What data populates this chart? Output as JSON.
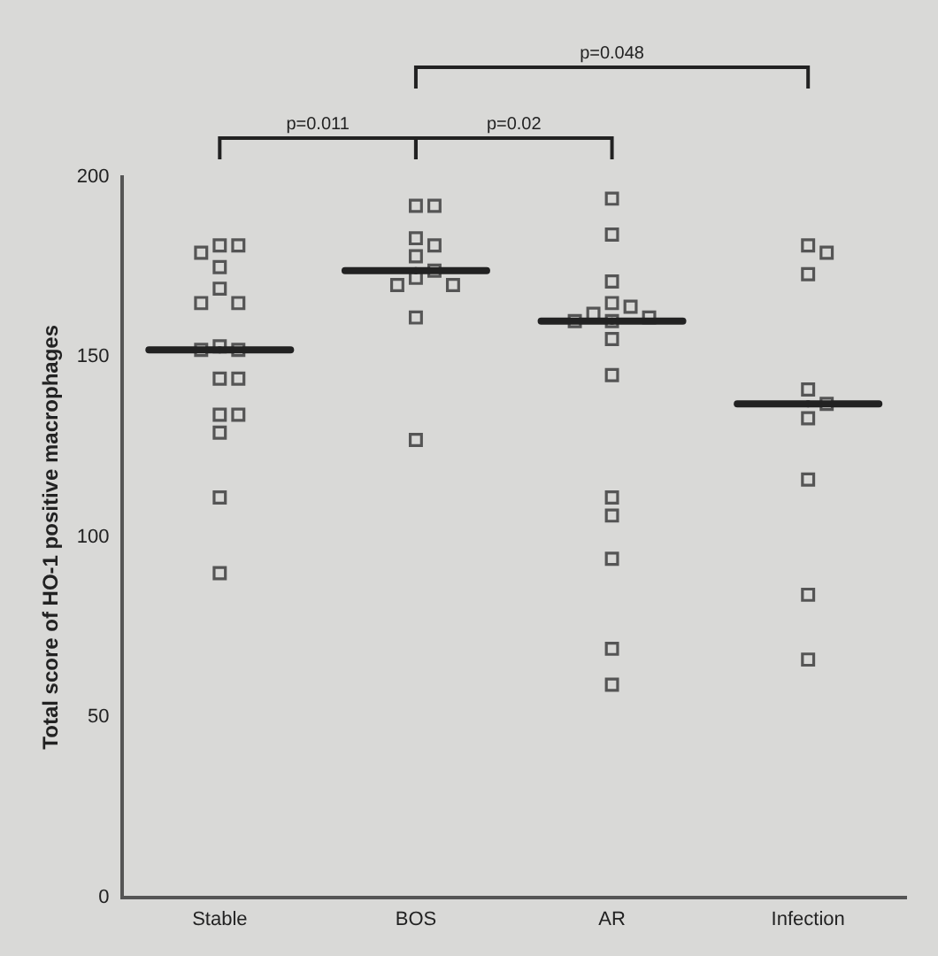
{
  "chart_data": {
    "type": "scatter",
    "ylabel": "Total score of HO-1 positive macrophages",
    "categories": [
      "Stable",
      "BOS",
      "AR",
      "Infection"
    ],
    "series": [
      {
        "marker": "square",
        "color": "#555555",
        "x": [
          "Stable",
          "Stable",
          "Stable",
          "Stable",
          "Stable",
          "Stable",
          "Stable",
          "Stable",
          "Stable",
          "Stable",
          "Stable",
          "Stable",
          "Stable",
          "Stable",
          "Stable",
          "Stable",
          "Stable",
          "BOS",
          "BOS",
          "BOS",
          "BOS",
          "BOS",
          "BOS",
          "BOS",
          "BOS",
          "BOS",
          "BOS",
          "BOS",
          "AR",
          "AR",
          "AR",
          "AR",
          "AR",
          "AR",
          "AR",
          "AR",
          "AR",
          "AR",
          "AR",
          "AR",
          "AR",
          "AR",
          "AR",
          "AR",
          "Infection",
          "Infection",
          "Infection",
          "Infection",
          "Infection",
          "Infection",
          "Infection",
          "Infection",
          "Infection"
        ],
        "values": [
          181,
          181,
          179,
          175,
          169,
          165,
          165,
          153,
          152,
          152,
          144,
          144,
          134,
          134,
          129,
          111,
          90,
          192,
          192,
          183,
          181,
          178,
          174,
          172,
          170,
          170,
          161,
          127,
          194,
          184,
          171,
          165,
          164,
          162,
          161,
          160,
          160,
          155,
          145,
          111,
          106,
          94,
          69,
          59,
          181,
          179,
          173,
          141,
          137,
          133,
          116,
          84,
          66
        ]
      },
      {
        "type": "box",
        "color": "#222222",
        "boxes": [
          {
            "low": 152,
            "q1": 152,
            "median": 152,
            "q3": 152,
            "high": 152
          },
          {
            "low": 174,
            "q1": 174,
            "median": 174,
            "q3": 174,
            "high": 174
          },
          {
            "low": 160,
            "q1": 160,
            "median": 160,
            "q3": 160,
            "high": 160
          },
          {
            "low": 137,
            "q1": 137,
            "median": 137,
            "q3": 137,
            "high": 137
          }
        ]
      }
    ],
    "ylim": [
      0,
      200
    ],
    "yticks": [
      0,
      50,
      100,
      150,
      200
    ],
    "annotations": [
      "p=0.011",
      "p=0.02",
      "p=0.048"
    ]
  }
}
